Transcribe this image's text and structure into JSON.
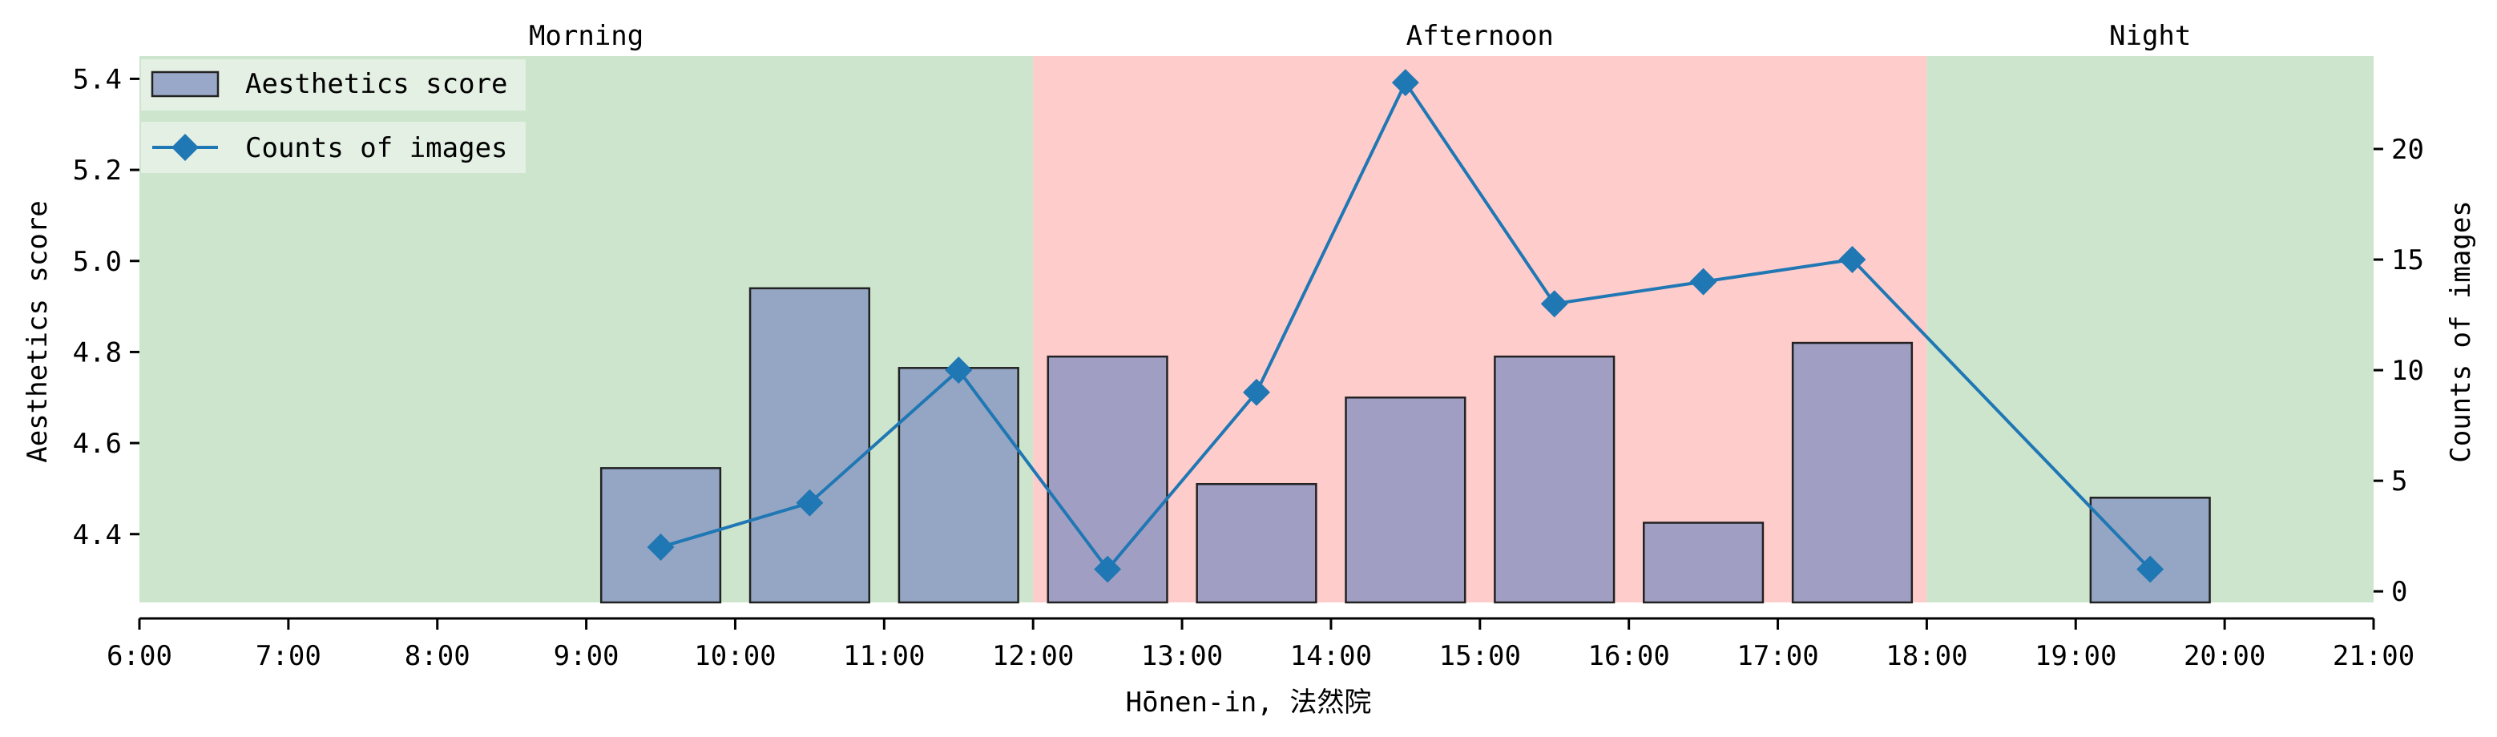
{
  "chart_data": {
    "type": "bar",
    "xlabel": "Hōnen-in, 法然院",
    "ylabel_left": "Aesthetics score",
    "ylabel_right": "Counts of images",
    "x_ticks": [
      "6:00",
      "7:00",
      "8:00",
      "9:00",
      "10:00",
      "11:00",
      "12:00",
      "13:00",
      "14:00",
      "15:00",
      "16:00",
      "17:00",
      "18:00",
      "19:00",
      "20:00",
      "21:00"
    ],
    "x_range": [
      6,
      21
    ],
    "ylim_left": [
      4.25,
      5.45
    ],
    "ylim_right": [
      -0.5,
      24.2
    ],
    "y_ticks_left": [
      "4.4",
      "4.6",
      "4.8",
      "5.0",
      "5.2",
      "5.4"
    ],
    "y_ticks_right": [
      "0",
      "5",
      "10",
      "15",
      "20"
    ],
    "periods": [
      {
        "label": "Morning",
        "start": 6,
        "end": 12,
        "color": "#cde5cd"
      },
      {
        "label": "Afternoon",
        "start": 12,
        "end": 18,
        "color": "#ffcccc"
      },
      {
        "label": "Night",
        "start": 18,
        "end": 21,
        "color": "#cde5cd"
      }
    ],
    "series": [
      {
        "name": "Aesthetics score",
        "kind": "bar",
        "color": "#8090c0",
        "x": [
          9.5,
          10.5,
          11.5,
          12.5,
          13.5,
          14.5,
          15.5,
          16.5,
          17.5,
          19.5
        ],
        "values": [
          4.545,
          4.94,
          4.765,
          4.79,
          4.51,
          4.7,
          4.79,
          4.425,
          4.82,
          4.48
        ]
      },
      {
        "name": "Counts of images",
        "kind": "line",
        "color": "#1f77b4",
        "x": [
          9.5,
          10.5,
          11.5,
          12.5,
          13.5,
          14.5,
          15.5,
          16.5,
          17.5,
          19.5
        ],
        "values": [
          2,
          4,
          10,
          1,
          9,
          23,
          13,
          14,
          15,
          1
        ]
      }
    ],
    "legend": "top-left",
    "grid": false
  }
}
